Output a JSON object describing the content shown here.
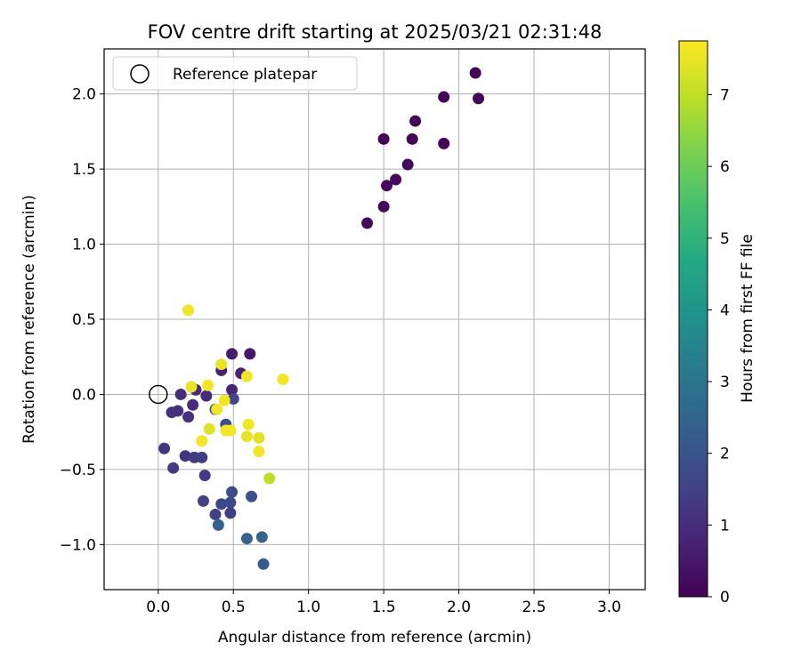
{
  "chart_data": {
    "type": "scatter",
    "title": "FOV centre drift starting at 2025/03/21 02:31:48",
    "xlabel": "Angular distance from reference (arcmin)",
    "ylabel": "Rotation from reference (arcmin)",
    "xlim": [
      -0.36,
      3.24
    ],
    "ylim": [
      -1.3,
      2.3
    ],
    "xticks": [
      "0.0",
      "0.5",
      "1.0",
      "1.5",
      "2.0",
      "2.5",
      "3.0"
    ],
    "yticks": [
      "−1.0",
      "−0.5",
      "0.0",
      "0.5",
      "1.0",
      "1.5",
      "2.0"
    ],
    "grid": true,
    "legend": {
      "position": "top-left",
      "entries": [
        "Reference platepar"
      ]
    },
    "reference_point": {
      "x": 0.0,
      "y": 0.0,
      "label": "Reference platepar"
    },
    "colorbar": {
      "label": "Hours from first FF file",
      "range": [
        0,
        7.75
      ],
      "ticks": [
        "0",
        "1",
        "2",
        "3",
        "4",
        "5",
        "6",
        "7"
      ],
      "colormap": "viridis"
    },
    "points": [
      {
        "x": 2.11,
        "y": 2.14,
        "h": 0.1
      },
      {
        "x": 1.9,
        "y": 1.98,
        "h": 0.1
      },
      {
        "x": 2.13,
        "y": 1.97,
        "h": 0.1
      },
      {
        "x": 1.71,
        "y": 1.82,
        "h": 0.1
      },
      {
        "x": 1.5,
        "y": 1.7,
        "h": 0.1
      },
      {
        "x": 1.69,
        "y": 1.7,
        "h": 0.1
      },
      {
        "x": 1.9,
        "y": 1.67,
        "h": 0.1
      },
      {
        "x": 1.66,
        "y": 1.53,
        "h": 0.2
      },
      {
        "x": 1.58,
        "y": 1.43,
        "h": 0.2
      },
      {
        "x": 1.52,
        "y": 1.39,
        "h": 0.2
      },
      {
        "x": 1.5,
        "y": 1.25,
        "h": 0.2
      },
      {
        "x": 1.39,
        "y": 1.14,
        "h": 0.2
      },
      {
        "x": 0.49,
        "y": 0.27,
        "h": 0.6
      },
      {
        "x": 0.61,
        "y": 0.27,
        "h": 0.5
      },
      {
        "x": 0.42,
        "y": 0.16,
        "h": 0.7
      },
      {
        "x": 0.55,
        "y": 0.14,
        "h": 0.7
      },
      {
        "x": 0.49,
        "y": 0.03,
        "h": 0.8
      },
      {
        "x": 0.25,
        "y": 0.03,
        "h": 0.9
      },
      {
        "x": 0.15,
        "y": 0.0,
        "h": 1.0
      },
      {
        "x": 0.32,
        "y": -0.01,
        "h": 1.0
      },
      {
        "x": 0.5,
        "y": -0.03,
        "h": 1.6
      },
      {
        "x": 0.23,
        "y": -0.07,
        "h": 1.0
      },
      {
        "x": 0.38,
        "y": -0.1,
        "h": 2.0
      },
      {
        "x": 0.13,
        "y": -0.11,
        "h": 1.1
      },
      {
        "x": 0.09,
        "y": -0.12,
        "h": 1.1
      },
      {
        "x": 0.2,
        "y": -0.15,
        "h": 1.1
      },
      {
        "x": 0.45,
        "y": -0.2,
        "h": 1.8
      },
      {
        "x": 0.04,
        "y": -0.36,
        "h": 1.2
      },
      {
        "x": 0.18,
        "y": -0.41,
        "h": 1.2
      },
      {
        "x": 0.24,
        "y": -0.42,
        "h": 1.3
      },
      {
        "x": 0.29,
        "y": -0.42,
        "h": 1.4
      },
      {
        "x": 0.1,
        "y": -0.49,
        "h": 1.3
      },
      {
        "x": 0.31,
        "y": -0.54,
        "h": 1.3
      },
      {
        "x": 0.49,
        "y": -0.65,
        "h": 1.8
      },
      {
        "x": 0.62,
        "y": -0.68,
        "h": 1.9
      },
      {
        "x": 0.3,
        "y": -0.71,
        "h": 1.5
      },
      {
        "x": 0.42,
        "y": -0.73,
        "h": 1.7
      },
      {
        "x": 0.48,
        "y": -0.72,
        "h": 1.7
      },
      {
        "x": 0.48,
        "y": -0.79,
        "h": 1.4
      },
      {
        "x": 0.38,
        "y": -0.8,
        "h": 1.5
      },
      {
        "x": 0.4,
        "y": -0.87,
        "h": 2.4
      },
      {
        "x": 0.59,
        "y": -0.96,
        "h": 2.4
      },
      {
        "x": 0.69,
        "y": -0.95,
        "h": 2.5
      },
      {
        "x": 0.7,
        "y": -1.13,
        "h": 2.2
      },
      {
        "x": 0.2,
        "y": 0.56,
        "h": 7.6
      },
      {
        "x": 0.42,
        "y": 0.2,
        "h": 7.5
      },
      {
        "x": 0.59,
        "y": 0.12,
        "h": 7.6
      },
      {
        "x": 0.83,
        "y": 0.1,
        "h": 7.6
      },
      {
        "x": 0.33,
        "y": 0.06,
        "h": 7.6
      },
      {
        "x": 0.22,
        "y": 0.05,
        "h": 7.5
      },
      {
        "x": 0.44,
        "y": -0.04,
        "h": 7.6
      },
      {
        "x": 0.39,
        "y": -0.1,
        "h": 7.6
      },
      {
        "x": 0.6,
        "y": -0.2,
        "h": 7.6
      },
      {
        "x": 0.34,
        "y": -0.23,
        "h": 7.4
      },
      {
        "x": 0.45,
        "y": -0.24,
        "h": 7.6
      },
      {
        "x": 0.48,
        "y": -0.24,
        "h": 7.6
      },
      {
        "x": 0.59,
        "y": -0.28,
        "h": 7.5
      },
      {
        "x": 0.67,
        "y": -0.29,
        "h": 7.4
      },
      {
        "x": 0.29,
        "y": -0.31,
        "h": 7.6
      },
      {
        "x": 0.67,
        "y": -0.38,
        "h": 7.6
      },
      {
        "x": 0.74,
        "y": -0.56,
        "h": 7.0
      }
    ]
  }
}
